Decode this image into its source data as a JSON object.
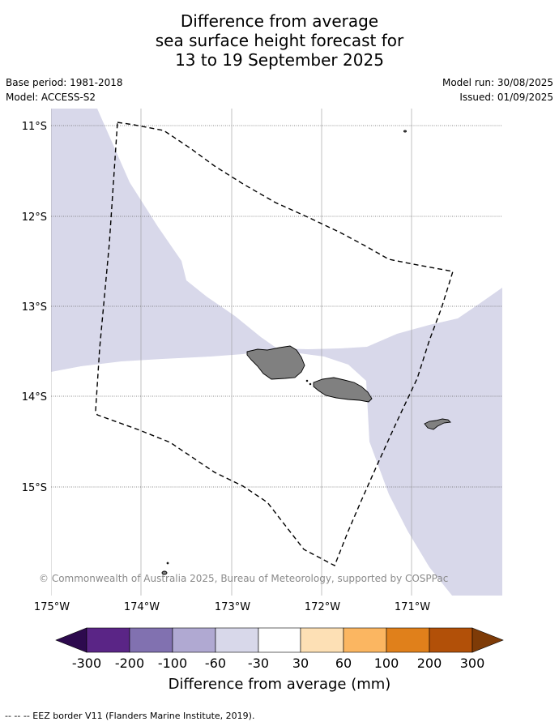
{
  "title": {
    "line1": "Difference from average",
    "line2": "sea surface height forecast for",
    "line3": "13 to 19 September 2025"
  },
  "meta": {
    "base_period": "Base period: 1981-2018",
    "model": "Model: ACCESS-S2",
    "model_run": "Model run: 30/08/2025",
    "issued": "Issued: 01/09/2025"
  },
  "map": {
    "lat_labels": [
      "11°S",
      "12°S",
      "13°S",
      "14°S",
      "15°S"
    ],
    "lon_labels": [
      "175°W",
      "174°W",
      "173°W",
      "172°W",
      "171°W"
    ],
    "copyright": "© Commonwealth of Australia 2025, Bureau of Meteorology, supported by COSPPac",
    "colors": {
      "anomaly_fill": "#d8d8ea",
      "land": "#808080",
      "eez": "#000000"
    }
  },
  "colorbar": {
    "tick_labels": [
      "-300",
      "-200",
      "-100",
      "-60",
      "-30",
      "30",
      "60",
      "100",
      "200",
      "300"
    ],
    "colors": [
      "#2d0a4e",
      "#5a2586",
      "#8171b0",
      "#b0a9d2",
      "#d8d8ea",
      "#ffffff",
      "#fde0b5",
      "#fbb661",
      "#e0801b",
      "#b25008",
      "#7e3b07"
    ],
    "label": "Difference from average (mm)"
  },
  "legend_note": {
    "text": "-- -- -- EEZ border V11 (Flanders Marine Institute, 2019)."
  }
}
